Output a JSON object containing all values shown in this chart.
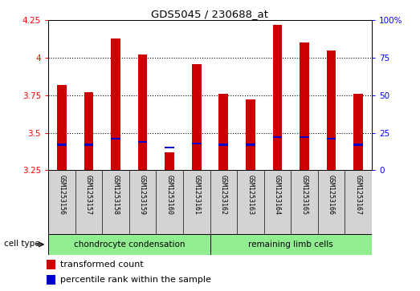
{
  "title": "GDS5045 / 230688_at",
  "samples": [
    "GSM1253156",
    "GSM1253157",
    "GSM1253158",
    "GSM1253159",
    "GSM1253160",
    "GSM1253161",
    "GSM1253162",
    "GSM1253163",
    "GSM1253164",
    "GSM1253165",
    "GSM1253166",
    "GSM1253167"
  ],
  "red_values": [
    3.82,
    3.77,
    4.13,
    4.02,
    3.37,
    3.96,
    3.76,
    3.72,
    4.22,
    4.1,
    4.05,
    3.76
  ],
  "blue_values": [
    3.42,
    3.42,
    3.46,
    3.44,
    3.4,
    3.43,
    3.42,
    3.42,
    3.47,
    3.47,
    3.46,
    3.42
  ],
  "ylim_left": [
    3.25,
    4.25
  ],
  "ylim_right": [
    0,
    100
  ],
  "yticks_left": [
    3.25,
    3.5,
    3.75,
    4.0,
    4.25
  ],
  "yticks_right": [
    0,
    25,
    50,
    75,
    100
  ],
  "ytick_labels_left": [
    "3.25",
    "3.5",
    "3.75",
    "4",
    "4.25"
  ],
  "ytick_labels_right": [
    "0",
    "25",
    "50",
    "75",
    "100%"
  ],
  "bar_bottom": 3.25,
  "bar_width": 0.35,
  "red_color": "#cc0000",
  "blue_color": "#0000cc",
  "cell_type_groups": [
    {
      "label": "chondrocyte condensation",
      "start": 0,
      "end": 6
    },
    {
      "label": "remaining limb cells",
      "start": 6,
      "end": 12
    }
  ],
  "cell_type_color": "#90ee90",
  "cell_type_label": "cell type",
  "legend_items": [
    {
      "color": "#cc0000",
      "label": "transformed count"
    },
    {
      "color": "#0000cc",
      "label": "percentile rank within the sample"
    }
  ],
  "axis_bg_color": "#d3d3d3",
  "plot_bg_color": "#ffffff",
  "fig_width": 5.23,
  "fig_height": 3.63,
  "dpi": 100
}
